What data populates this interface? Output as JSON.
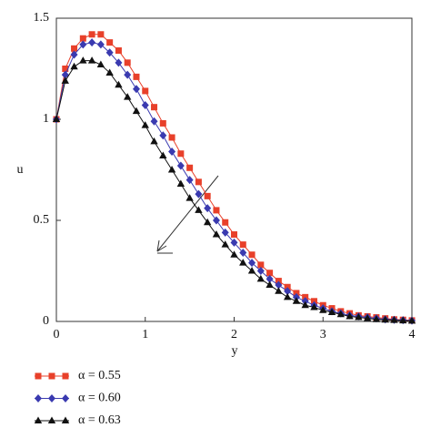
{
  "chart_data": {
    "type": "line",
    "xlabel": "y",
    "ylabel": "u",
    "xlim": [
      0,
      4
    ],
    "ylim": [
      0,
      1.5
    ],
    "xticks": [
      0,
      1,
      2,
      3,
      4
    ],
    "yticks": [
      0,
      0.5,
      1,
      1.5
    ],
    "x": [
      0,
      0.1,
      0.2,
      0.3,
      0.4,
      0.5,
      0.6,
      0.7,
      0.8,
      0.9,
      1,
      1.1,
      1.2,
      1.3,
      1.4,
      1.5,
      1.6,
      1.7,
      1.8,
      1.9,
      2,
      2.1,
      2.2,
      2.3,
      2.4,
      2.5,
      2.6,
      2.7,
      2.8,
      2.9,
      3,
      3.1,
      3.2,
      3.3,
      3.4,
      3.5,
      3.6,
      3.7,
      3.8,
      3.9,
      4
    ],
    "series": [
      {
        "name": "α = 0.55",
        "color": "#e8402a",
        "marker": "square",
        "values": [
          1,
          1.25,
          1.35,
          1.4,
          1.42,
          1.42,
          1.38,
          1.34,
          1.28,
          1.21,
          1.14,
          1.06,
          0.98,
          0.91,
          0.83,
          0.76,
          0.69,
          0.62,
          0.55,
          0.49,
          0.43,
          0.38,
          0.33,
          0.28,
          0.24,
          0.2,
          0.17,
          0.14,
          0.12,
          0.1,
          0.08,
          0.065,
          0.05,
          0.04,
          0.03,
          0.025,
          0.02,
          0.015,
          0.01,
          0.008,
          0.005
        ]
      },
      {
        "name": "α = 0.60",
        "color": "#3a3ab0",
        "marker": "diamond",
        "values": [
          1,
          1.22,
          1.32,
          1.37,
          1.38,
          1.37,
          1.33,
          1.28,
          1.22,
          1.15,
          1.07,
          0.99,
          0.92,
          0.84,
          0.77,
          0.7,
          0.63,
          0.56,
          0.5,
          0.44,
          0.39,
          0.34,
          0.29,
          0.25,
          0.21,
          0.18,
          0.15,
          0.12,
          0.1,
          0.08,
          0.065,
          0.05,
          0.04,
          0.03,
          0.025,
          0.02,
          0.015,
          0.01,
          0.008,
          0.006,
          0.004
        ]
      },
      {
        "name": "α = 0.63",
        "color": "#111111",
        "marker": "triangle",
        "values": [
          1,
          1.19,
          1.26,
          1.29,
          1.29,
          1.27,
          1.23,
          1.17,
          1.11,
          1.04,
          0.97,
          0.89,
          0.82,
          0.75,
          0.68,
          0.61,
          0.55,
          0.49,
          0.43,
          0.38,
          0.33,
          0.29,
          0.25,
          0.21,
          0.18,
          0.15,
          0.12,
          0.1,
          0.08,
          0.07,
          0.055,
          0.045,
          0.035,
          0.025,
          0.02,
          0.015,
          0.01,
          0.008,
          0.006,
          0.004,
          0.003
        ]
      }
    ]
  }
}
